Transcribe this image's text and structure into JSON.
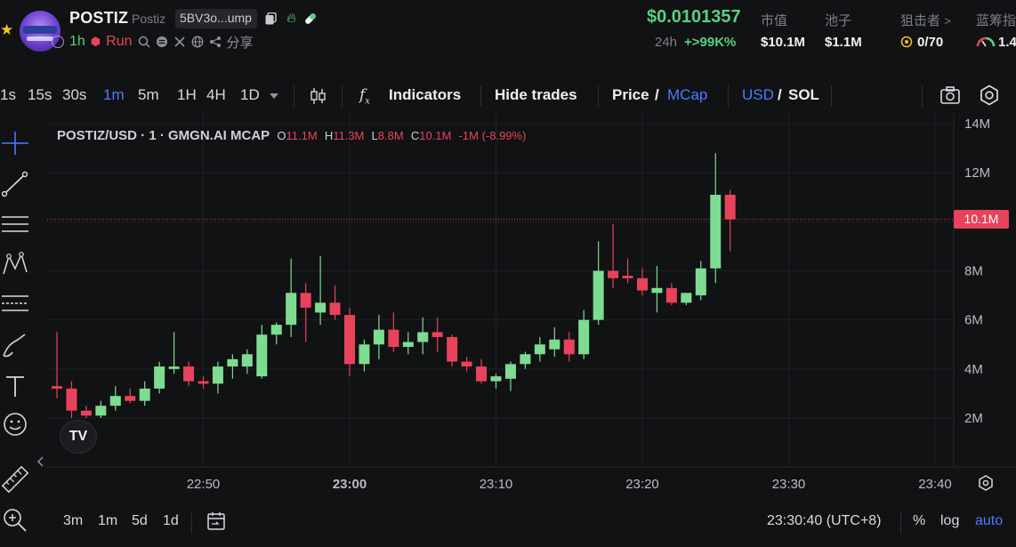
{
  "token": {
    "name": "POSTIZ",
    "ticker": "Postiz",
    "address": "5BV3o...ump",
    "age": "1h",
    "run": "Run",
    "share": "分享"
  },
  "stats": {
    "price": "$0.0101357",
    "change_label": "24h",
    "change_value": "+>99K%",
    "mcap_label": "市值",
    "mcap_value": "$10.1M",
    "pool_label": "池子",
    "pool_value": "$1.1M",
    "sniper_label": "狙击者",
    "sniper_value": "0/70",
    "bluechip_label": "蓝筹指",
    "bluechip_value": "1.4"
  },
  "toolbar": {
    "intervals": [
      "1s",
      "15s",
      "30s",
      "1m",
      "5m",
      "1H",
      "4H",
      "1D"
    ],
    "active_interval": "1m",
    "indicators": "Indicators",
    "hide_trades": "Hide trades",
    "price": "Price",
    "slash": "/",
    "mcap": "MCap",
    "usd": "USD",
    "sol": "SOL"
  },
  "legend": {
    "title": "POSTIZ/USD · 1 · GMGN.AI MCAP",
    "o_label": "O",
    "o_value": "11.1M",
    "h_label": "H",
    "h_value": "11.3M",
    "l_label": "L",
    "l_value": "8.8M",
    "c_label": "C",
    "c_value": "10.1M",
    "change": "-1M (-8.99%)"
  },
  "last_badge": "10.1M",
  "bottom": {
    "ranges": [
      "3m",
      "1m",
      "5d",
      "1d"
    ],
    "time": "23:30:40 (UTC+8)",
    "percent": "%",
    "log": "log",
    "auto": "auto"
  },
  "colors": {
    "up": "#7ddc92",
    "down": "#e8435a",
    "accent": "#4b7bff",
    "positive": "#58d17f",
    "background": "#111214"
  },
  "chart_data": {
    "type": "candlestick",
    "title": "POSTIZ/USD · 1 · GMGN.AI MCAP",
    "unit": "USD market cap (M)",
    "y_ticks": [
      "14M",
      "12M",
      "10M",
      "8M",
      "6M",
      "4M",
      "2M"
    ],
    "y_tick_values": [
      14,
      12,
      10,
      8,
      6,
      4,
      2
    ],
    "ylim": [
      0,
      14.5
    ],
    "x_ticks": [
      "22:50",
      "23:00",
      "23:10",
      "23:20",
      "23:30",
      "23:40"
    ],
    "x_tick_minutes": [
      10,
      20,
      30,
      40,
      50,
      60
    ],
    "last_value": 10.1,
    "candles": [
      {
        "t": 0,
        "o": 3.3,
        "h": 5.5,
        "l": 2.8,
        "c": 3.2
      },
      {
        "t": 1,
        "o": 3.2,
        "h": 3.5,
        "l": 2.0,
        "c": 2.3
      },
      {
        "t": 2,
        "o": 2.3,
        "h": 2.5,
        "l": 2.0,
        "c": 2.1
      },
      {
        "t": 3,
        "o": 2.1,
        "h": 2.7,
        "l": 2.0,
        "c": 2.5
      },
      {
        "t": 4,
        "o": 2.5,
        "h": 3.3,
        "l": 2.3,
        "c": 2.9
      },
      {
        "t": 5,
        "o": 2.9,
        "h": 3.2,
        "l": 2.6,
        "c": 2.7
      },
      {
        "t": 6,
        "o": 2.7,
        "h": 3.5,
        "l": 2.5,
        "c": 3.2
      },
      {
        "t": 7,
        "o": 3.2,
        "h": 4.3,
        "l": 3.0,
        "c": 4.1
      },
      {
        "t": 8,
        "o": 4.0,
        "h": 5.5,
        "l": 3.8,
        "c": 4.1
      },
      {
        "t": 9,
        "o": 4.1,
        "h": 4.3,
        "l": 3.3,
        "c": 3.5
      },
      {
        "t": 10,
        "o": 3.5,
        "h": 3.7,
        "l": 3.2,
        "c": 3.4
      },
      {
        "t": 11,
        "o": 3.4,
        "h": 4.3,
        "l": 3.0,
        "c": 4.1
      },
      {
        "t": 12,
        "o": 4.1,
        "h": 4.6,
        "l": 3.6,
        "c": 4.4
      },
      {
        "t": 13,
        "o": 4.1,
        "h": 4.8,
        "l": 3.8,
        "c": 4.6
      },
      {
        "t": 14,
        "o": 3.7,
        "h": 5.8,
        "l": 3.6,
        "c": 5.4
      },
      {
        "t": 15,
        "o": 5.4,
        "h": 5.9,
        "l": 5.0,
        "c": 5.8
      },
      {
        "t": 16,
        "o": 5.8,
        "h": 8.5,
        "l": 5.3,
        "c": 7.1
      },
      {
        "t": 17,
        "o": 7.1,
        "h": 7.5,
        "l": 5.1,
        "c": 6.5
      },
      {
        "t": 18,
        "o": 6.3,
        "h": 8.6,
        "l": 5.8,
        "c": 6.7
      },
      {
        "t": 19,
        "o": 6.7,
        "h": 7.4,
        "l": 6.0,
        "c": 6.2
      },
      {
        "t": 20,
        "o": 6.2,
        "h": 6.5,
        "l": 3.7,
        "c": 4.2
      },
      {
        "t": 21,
        "o": 4.2,
        "h": 5.2,
        "l": 3.9,
        "c": 5.0
      },
      {
        "t": 22,
        "o": 5.0,
        "h": 6.2,
        "l": 4.4,
        "c": 5.6
      },
      {
        "t": 23,
        "o": 5.6,
        "h": 6.3,
        "l": 4.7,
        "c": 4.9
      },
      {
        "t": 24,
        "o": 4.9,
        "h": 5.5,
        "l": 4.6,
        "c": 5.1
      },
      {
        "t": 25,
        "o": 5.1,
        "h": 6.1,
        "l": 4.6,
        "c": 5.5
      },
      {
        "t": 26,
        "o": 5.5,
        "h": 6.1,
        "l": 4.7,
        "c": 5.3
      },
      {
        "t": 27,
        "o": 5.3,
        "h": 5.4,
        "l": 4.1,
        "c": 4.3
      },
      {
        "t": 28,
        "o": 4.3,
        "h": 4.5,
        "l": 3.9,
        "c": 4.1
      },
      {
        "t": 29,
        "o": 4.1,
        "h": 4.4,
        "l": 3.4,
        "c": 3.5
      },
      {
        "t": 30,
        "o": 3.5,
        "h": 3.8,
        "l": 3.2,
        "c": 3.7
      },
      {
        "t": 31,
        "o": 3.6,
        "h": 4.3,
        "l": 3.1,
        "c": 4.2
      },
      {
        "t": 32,
        "o": 4.2,
        "h": 4.7,
        "l": 4.0,
        "c": 4.6
      },
      {
        "t": 33,
        "o": 4.6,
        "h": 5.3,
        "l": 4.3,
        "c": 5.0
      },
      {
        "t": 34,
        "o": 4.8,
        "h": 5.7,
        "l": 4.5,
        "c": 5.2
      },
      {
        "t": 35,
        "o": 5.2,
        "h": 5.5,
        "l": 4.3,
        "c": 4.6
      },
      {
        "t": 36,
        "o": 4.6,
        "h": 6.4,
        "l": 4.4,
        "c": 6.0
      },
      {
        "t": 37,
        "o": 6.0,
        "h": 9.2,
        "l": 5.8,
        "c": 8.0
      },
      {
        "t": 38,
        "o": 8.0,
        "h": 9.9,
        "l": 7.3,
        "c": 7.7
      },
      {
        "t": 39,
        "o": 7.8,
        "h": 8.5,
        "l": 7.5,
        "c": 7.7
      },
      {
        "t": 40,
        "o": 7.7,
        "h": 8.1,
        "l": 7.0,
        "c": 7.2
      },
      {
        "t": 41,
        "o": 7.1,
        "h": 8.2,
        "l": 6.3,
        "c": 7.3
      },
      {
        "t": 42,
        "o": 7.3,
        "h": 7.5,
        "l": 6.6,
        "c": 6.7
      },
      {
        "t": 43,
        "o": 6.7,
        "h": 7.1,
        "l": 6.6,
        "c": 7.1
      },
      {
        "t": 44,
        "o": 7.0,
        "h": 8.4,
        "l": 6.8,
        "c": 8.1
      },
      {
        "t": 45,
        "o": 8.1,
        "h": 12.8,
        "l": 7.5,
        "c": 11.1
      },
      {
        "t": 46,
        "o": 11.1,
        "h": 11.3,
        "l": 8.8,
        "c": 10.1
      }
    ]
  }
}
